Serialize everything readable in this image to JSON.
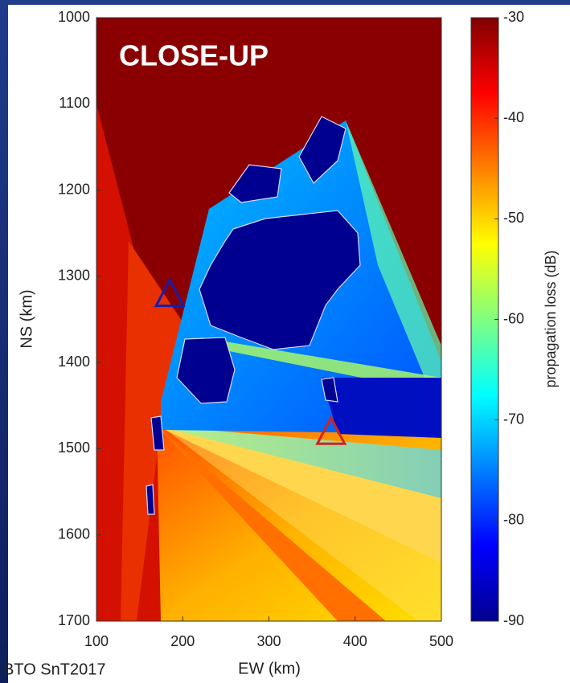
{
  "footer": "BTO SnT2017",
  "chart_data": {
    "type": "heatmap",
    "title": "CLOSE-UP",
    "x_label": "EW (km)",
    "y_label": "NS (km)",
    "xlim": [
      100,
      500
    ],
    "xticks": [
      100,
      200,
      300,
      400,
      500
    ],
    "ylim": [
      1000,
      1700
    ],
    "y_inverted": true,
    "yticks": [
      1000,
      1100,
      1200,
      1300,
      1400,
      1500,
      1600,
      1700
    ],
    "colorbar": {
      "label": "propagation loss (dB)",
      "lim": [
        -90,
        -30
      ],
      "ticks": [
        -30,
        -40,
        -50,
        -60,
        -70,
        -80,
        -90
      ],
      "colors": [
        "#00008f",
        "#0000ff",
        "#0080ff",
        "#00ffff",
        "#80ff80",
        "#ffff00",
        "#ff8000",
        "#ff0000",
        "#800000"
      ]
    },
    "markers": {
      "x": [
        185,
        372
      ],
      "y": [
        1320,
        1480
      ],
      "colors": [
        "#1c1ca8",
        "#d42020"
      ]
    }
  }
}
